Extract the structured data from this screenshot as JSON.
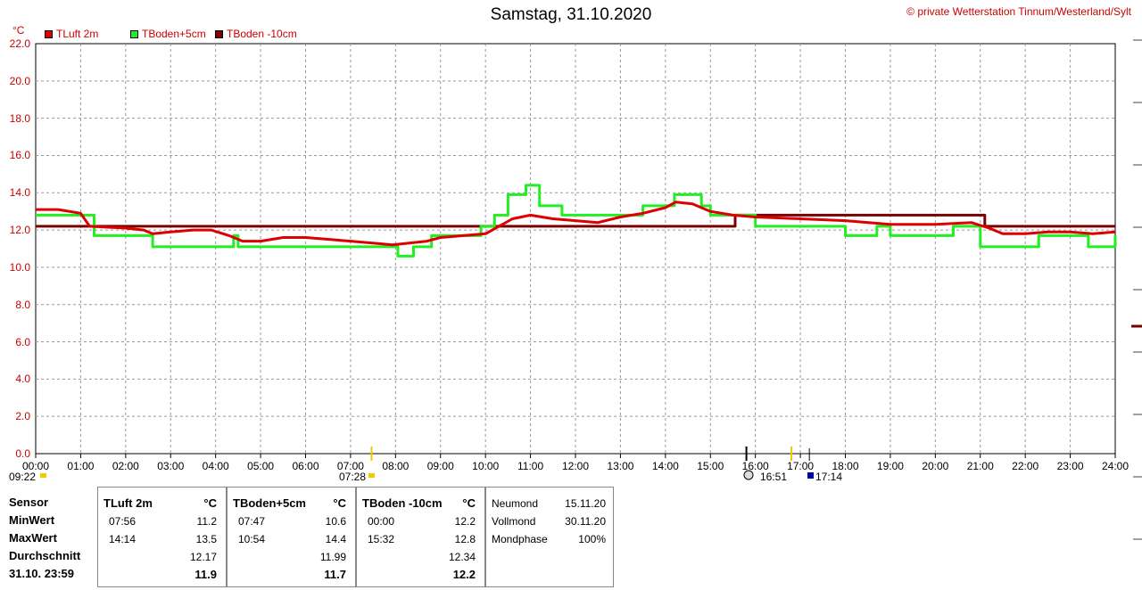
{
  "header": {
    "title": "Samstag, 31.10.2020",
    "copyright": "© private Wetterstation Tinnum/Westerland/Sylt",
    "unit": "°C"
  },
  "legend": [
    {
      "label": "TLuft 2m",
      "color": "#dd0000"
    },
    {
      "label": "TBoden+5cm",
      "color": "#22ee22"
    },
    {
      "label": "TBoden -10cm",
      "color": "#7a0000"
    }
  ],
  "sun": {
    "sunrise_label": "07:28",
    "sunset_label": "17:14",
    "moon_label": "16:51",
    "prev_label": "09:22"
  },
  "stats": {
    "labels": {
      "sensor": "Sensor",
      "min": "MinWert",
      "max": "MaxWert",
      "avg": "Durchschnitt",
      "last": "31.10. 23:59"
    },
    "columns": [
      {
        "name": "TLuft 2m",
        "unit": "°C",
        "min_time": "07:56",
        "min": "11.2",
        "max_time": "14:14",
        "max": "13.5",
        "avg": "12.17",
        "last": "11.9"
      },
      {
        "name": "TBoden+5cm",
        "unit": "°C",
        "min_time": "07:47",
        "min": "10.6",
        "max_time": "10:54",
        "max": "14.4",
        "avg": "11.99",
        "last": "11.7"
      },
      {
        "name": "TBoden -10cm",
        "unit": "°C",
        "min_time": "00:00",
        "min": "12.2",
        "max_time": "15:32",
        "max": "12.8",
        "avg": "12.34",
        "last": "12.2"
      }
    ],
    "moon": [
      {
        "label": "Neumond",
        "value": "15.11.20"
      },
      {
        "label": "Vollmond",
        "value": "30.11.20"
      },
      {
        "label": "Mondphase",
        "value": "100%"
      }
    ]
  },
  "chart_data": {
    "type": "line",
    "title": "Samstag, 31.10.2020",
    "ylabel": "°C",
    "xlim": [
      0,
      24
    ],
    "ylim": [
      0,
      22
    ],
    "x_ticks": [
      "00:00",
      "01:00",
      "02:00",
      "03:00",
      "04:00",
      "05:00",
      "06:00",
      "07:00",
      "08:00",
      "09:00",
      "10:00",
      "11:00",
      "12:00",
      "13:00",
      "14:00",
      "15:00",
      "16:00",
      "17:00",
      "18:00",
      "19:00",
      "20:00",
      "21:00",
      "22:00",
      "23:00",
      "24:00"
    ],
    "y_ticks": [
      "0.0",
      "2.0",
      "4.0",
      "6.0",
      "8.0",
      "10.0",
      "12.0",
      "14.0",
      "16.0",
      "18.0",
      "20.0",
      "22.0"
    ],
    "grid": true,
    "series": [
      {
        "name": "TLuft 2m",
        "color": "#dd0000",
        "x": [
          0,
          0.5,
          1.0,
          1.2,
          2.0,
          2.4,
          2.6,
          3.0,
          3.5,
          3.9,
          4.3,
          4.6,
          5.0,
          5.5,
          6.0,
          6.5,
          7.0,
          7.5,
          7.93,
          8.3,
          8.7,
          9.0,
          9.5,
          10.0,
          10.3,
          10.6,
          11.0,
          11.5,
          12.0,
          12.5,
          13.0,
          13.5,
          14.0,
          14.23,
          14.6,
          15.0,
          15.5,
          16.0,
          17.0,
          18.0,
          19.0,
          20.0,
          20.8,
          21.2,
          21.5,
          22.0,
          22.5,
          23.0,
          23.5,
          24.0
        ],
        "y": [
          13.1,
          13.1,
          12.9,
          12.2,
          12.1,
          12.0,
          11.8,
          11.9,
          12.0,
          12.0,
          11.7,
          11.4,
          11.4,
          11.6,
          11.6,
          11.5,
          11.4,
          11.3,
          11.2,
          11.3,
          11.4,
          11.6,
          11.7,
          11.8,
          12.2,
          12.6,
          12.8,
          12.6,
          12.5,
          12.4,
          12.7,
          12.9,
          13.2,
          13.5,
          13.4,
          13.0,
          12.8,
          12.7,
          12.6,
          12.5,
          12.3,
          12.3,
          12.4,
          12.1,
          11.8,
          11.8,
          11.9,
          11.9,
          11.8,
          11.9
        ]
      },
      {
        "name": "TBoden+5cm",
        "color": "#22ee22",
        "x": [
          0,
          1.0,
          1.3,
          2.3,
          2.6,
          4.4,
          4.5,
          7.78,
          8.05,
          8.4,
          8.8,
          9.5,
          9.9,
          10.2,
          10.5,
          10.9,
          11.2,
          11.7,
          12.0,
          12.5,
          13.2,
          13.5,
          14.0,
          14.2,
          14.8,
          15.0,
          15.5,
          16.0,
          16.5,
          17.0,
          17.5,
          18.0,
          18.3,
          18.7,
          19.0,
          20.2,
          20.4,
          21.0,
          21.7,
          22.3,
          23.4,
          24.0
        ],
        "y": [
          12.8,
          12.8,
          11.7,
          11.7,
          11.1,
          11.7,
          11.1,
          11.1,
          10.6,
          11.1,
          11.7,
          11.7,
          12.2,
          12.8,
          13.9,
          14.4,
          13.3,
          12.8,
          12.8,
          12.8,
          12.8,
          13.3,
          13.3,
          13.9,
          13.3,
          12.8,
          12.8,
          12.2,
          12.2,
          12.2,
          12.2,
          11.7,
          11.7,
          12.2,
          11.7,
          11.7,
          12.2,
          11.1,
          11.1,
          11.7,
          11.1,
          11.7
        ]
      },
      {
        "name": "TBoden -10cm",
        "color": "#7a0000",
        "x": [
          0,
          15.53,
          15.55,
          21.0,
          21.1,
          24.0
        ],
        "y": [
          12.2,
          12.2,
          12.8,
          12.8,
          12.2,
          12.2
        ]
      }
    ]
  }
}
